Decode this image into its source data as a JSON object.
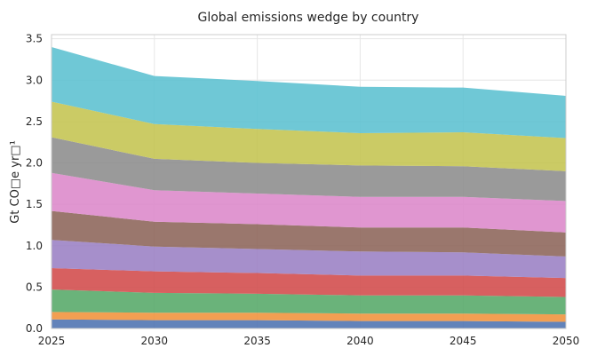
{
  "chart_data": {
    "type": "area",
    "stacked": true,
    "title": "Global emissions wedge by country",
    "xlabel": "",
    "ylabel": "Gt CO□e yr□¹",
    "x": [
      2025,
      2030,
      2035,
      2040,
      2045,
      2050
    ],
    "xlim": [
      2025,
      2050
    ],
    "ylim": [
      0,
      3.55
    ],
    "xticks": [
      2025,
      2030,
      2035,
      2040,
      2045,
      2050
    ],
    "yticks": [
      0.0,
      0.5,
      1.0,
      1.5,
      2.0,
      2.5,
      3.0,
      3.5
    ],
    "ytick_labels": [
      "0.0",
      "0.5",
      "1.0",
      "1.5",
      "2.0",
      "2.5",
      "3.0",
      "3.5"
    ],
    "grid": true,
    "legend": "none",
    "series": [
      {
        "color": "#4c72b0",
        "values": [
          0.11,
          0.1,
          0.1,
          0.09,
          0.09,
          0.08
        ]
      },
      {
        "color": "#f0923a",
        "values": [
          0.09,
          0.09,
          0.09,
          0.09,
          0.09,
          0.09
        ]
      },
      {
        "color": "#55a868",
        "values": [
          0.27,
          0.24,
          0.23,
          0.22,
          0.22,
          0.21
        ]
      },
      {
        "color": "#d14a4a",
        "values": [
          0.26,
          0.26,
          0.25,
          0.24,
          0.24,
          0.23
        ]
      },
      {
        "color": "#9a7fc4",
        "values": [
          0.34,
          0.3,
          0.29,
          0.29,
          0.28,
          0.26
        ]
      },
      {
        "color": "#8c6459",
        "values": [
          0.35,
          0.3,
          0.3,
          0.29,
          0.3,
          0.29
        ]
      },
      {
        "color": "#dc88c9",
        "values": [
          0.46,
          0.38,
          0.37,
          0.37,
          0.37,
          0.38
        ]
      },
      {
        "color": "#8c8c8c",
        "values": [
          0.43,
          0.38,
          0.37,
          0.38,
          0.37,
          0.36
        ]
      },
      {
        "color": "#c4c450",
        "values": [
          0.43,
          0.42,
          0.41,
          0.39,
          0.41,
          0.4
        ]
      },
      {
        "color": "#5bc0d0",
        "values": [
          0.66,
          0.58,
          0.58,
          0.56,
          0.54,
          0.51
        ]
      }
    ]
  }
}
